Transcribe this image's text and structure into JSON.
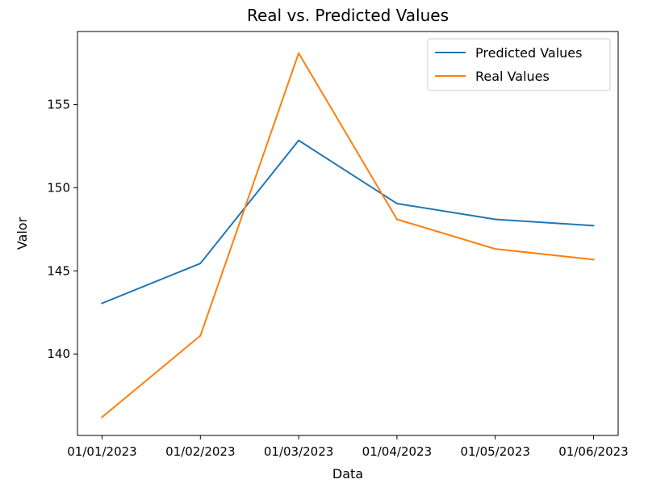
{
  "chart_data": {
    "type": "line",
    "title": "Real vs. Predicted Values",
    "xlabel": "Data",
    "ylabel": "Valor",
    "categories": [
      "01/01/2023",
      "01/02/2023",
      "01/03/2023",
      "01/04/2023",
      "01/05/2023",
      "01/06/2023"
    ],
    "ylim": [
      135.1,
      159.4
    ],
    "yticks": [
      140,
      145,
      150,
      155
    ],
    "grid": false,
    "legend_position": "top-right",
    "series": [
      {
        "name": "Predicted Values",
        "color": "#1f77b4",
        "values": [
          143.05,
          145.45,
          152.85,
          149.05,
          148.1,
          147.72
        ]
      },
      {
        "name": "Real Values",
        "color": "#ff7f0e",
        "values": [
          136.2,
          141.1,
          158.1,
          148.1,
          146.32,
          145.68
        ]
      }
    ]
  }
}
